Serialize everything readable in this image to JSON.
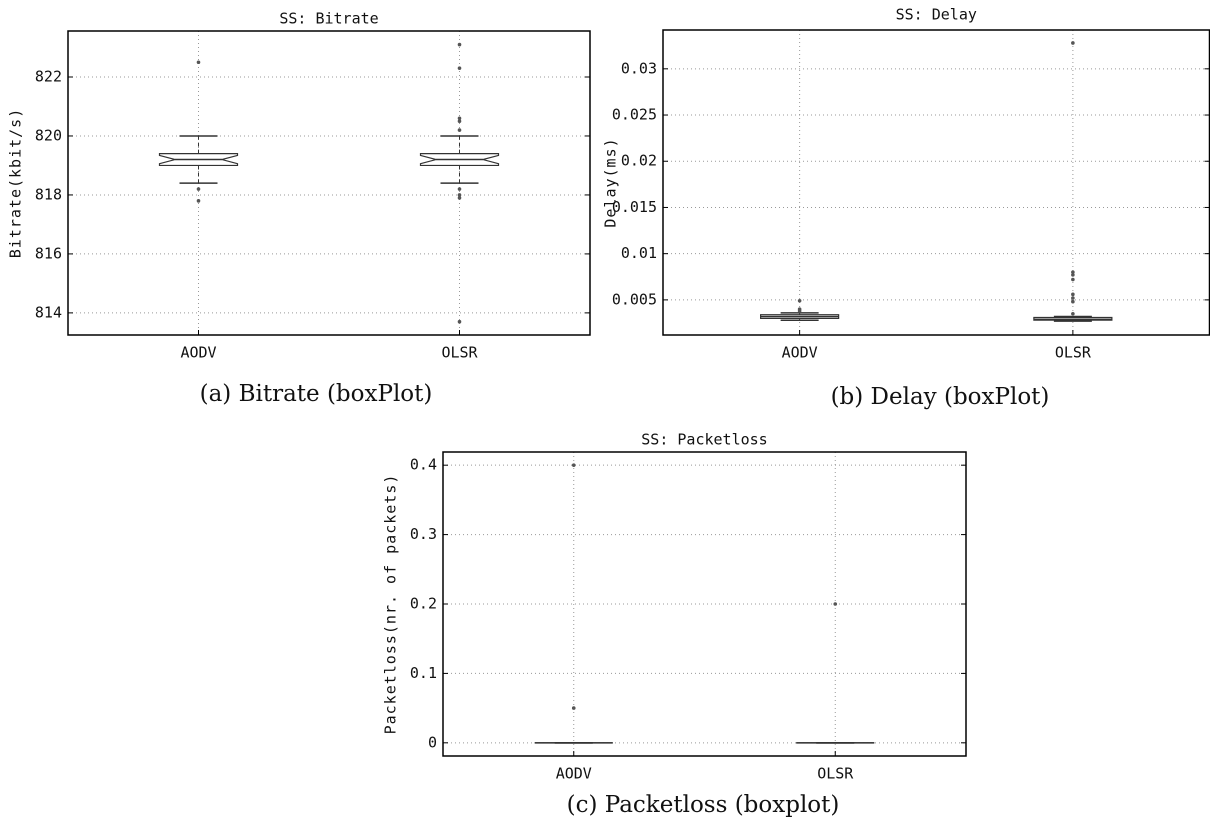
{
  "chart_data": [
    {
      "type": "box",
      "title": "SS: Bitrate",
      "ylabel": "Bitrate(kbit/s)",
      "caption": "(a) Bitrate (boxPlot)",
      "categories": [
        "AODV",
        "OLSR"
      ],
      "color": "#333333",
      "notch": true,
      "grid": true,
      "ylim": [
        813.25,
        823.56
      ],
      "yticks": [
        814,
        816,
        818,
        820,
        822
      ],
      "boxes": [
        {
          "whislo": 818.4,
          "q1": 819.0,
          "median": 819.2,
          "q3": 819.4,
          "whishi": 820.0,
          "fliers": [
            822.5,
            818.2,
            817.8
          ]
        },
        {
          "whislo": 818.4,
          "q1": 819.0,
          "median": 819.2,
          "q3": 819.4,
          "whishi": 820.0,
          "fliers": [
            823.1,
            822.3,
            820.6,
            820.5,
            820.2,
            818.2,
            818.0,
            817.9,
            813.7
          ]
        }
      ]
    },
    {
      "type": "box",
      "title": "SS: Delay",
      "ylabel": "Delay(ms)",
      "caption": "(b) Delay (boxPlot)",
      "categories": [
        "AODV",
        "OLSR"
      ],
      "color": "#333333",
      "notch": false,
      "grid": true,
      "ylim": [
        0.0012,
        0.0342
      ],
      "yticks": [
        0.005,
        0.01,
        0.015,
        0.02,
        0.025,
        0.03
      ],
      "boxes": [
        {
          "whislo": 0.0028,
          "q1": 0.003,
          "median": 0.0032,
          "q3": 0.0034,
          "whishi": 0.0036,
          "fliers": [
            0.0049,
            0.004,
            0.0038
          ]
        },
        {
          "whislo": 0.0027,
          "q1": 0.0028,
          "median": 0.0029,
          "q3": 0.0031,
          "whishi": 0.0032,
          "fliers": [
            0.0328,
            0.008,
            0.0077,
            0.0072,
            0.0056,
            0.0052,
            0.0048,
            0.0035
          ]
        }
      ]
    },
    {
      "type": "box",
      "title": "SS: Packetloss",
      "ylabel": "Packetloss(nr. of packets)",
      "caption": "(c) Packetloss (boxplot)",
      "categories": [
        "AODV",
        "OLSR"
      ],
      "color": "#333333",
      "notch": false,
      "grid": true,
      "ylim": [
        -0.019,
        0.419
      ],
      "yticks": [
        0,
        0.1,
        0.2,
        0.3,
        0.4
      ],
      "boxes": [
        {
          "whislo": 0,
          "q1": 0,
          "median": 0,
          "q3": 0,
          "whishi": 0,
          "fliers": [
            0.4,
            0.05
          ]
        },
        {
          "whislo": 0,
          "q1": 0,
          "median": 0,
          "q3": 0,
          "whishi": 0,
          "fliers": [
            0.2
          ]
        }
      ]
    }
  ]
}
